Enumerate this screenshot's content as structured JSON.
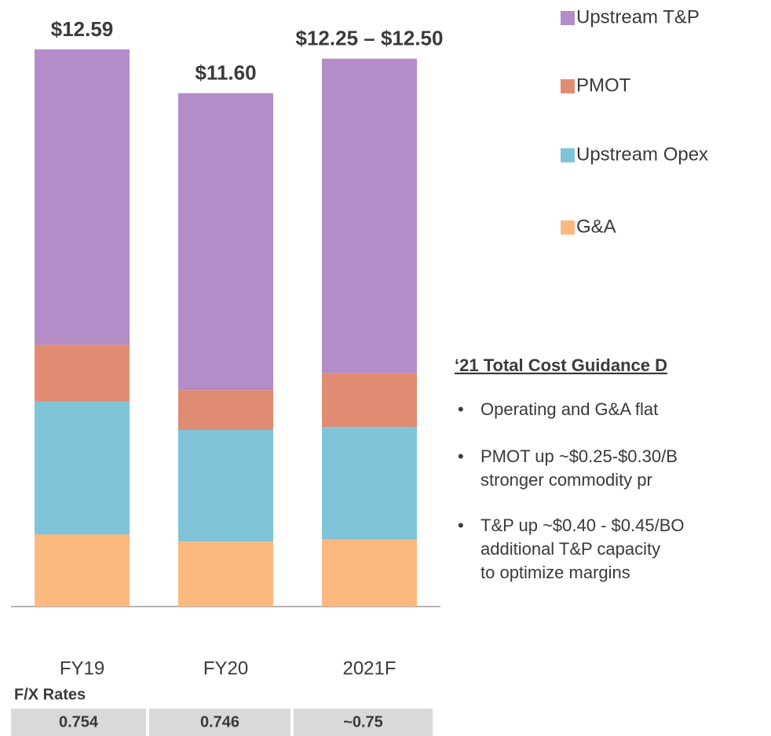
{
  "chart_data": {
    "type": "bar",
    "stacked": true,
    "categories": [
      "FY19",
      "FY20",
      "2021F"
    ],
    "series": [
      {
        "name": "G&A",
        "color": "#fbb97f",
        "values": [
          1.63,
          1.47,
          1.51
        ]
      },
      {
        "name": "Upstream Opex",
        "color": "#7fc4d8",
        "values": [
          3.0,
          2.52,
          2.55
        ]
      },
      {
        "name": "PMOT",
        "color": "#e08c73",
        "values": [
          1.29,
          0.9,
          1.21
        ]
      },
      {
        "name": "Upstream T&P",
        "color": "#b38cc8",
        "values": [
          6.67,
          6.71,
          7.11
        ]
      }
    ],
    "total_labels": [
      "$12.59",
      "$11.60",
      "$12.25 – $12.50"
    ],
    "legend": "top-right",
    "fx": {
      "title": "F/X Rates",
      "cells": [
        "0.754",
        "0.746",
        "~0.75"
      ]
    },
    "notes": {
      "heading": "‘21 Total Cost Guidance D",
      "bullets": [
        [
          "Operating and G&A flat"
        ],
        [
          "PMOT up ~$0.25-$0.30/B",
          "stronger commodity pr"
        ],
        [
          "T&P up ~$0.40 - $0.45/BO",
          "additional T&P capacity",
          "to optimize margins"
        ]
      ]
    }
  }
}
